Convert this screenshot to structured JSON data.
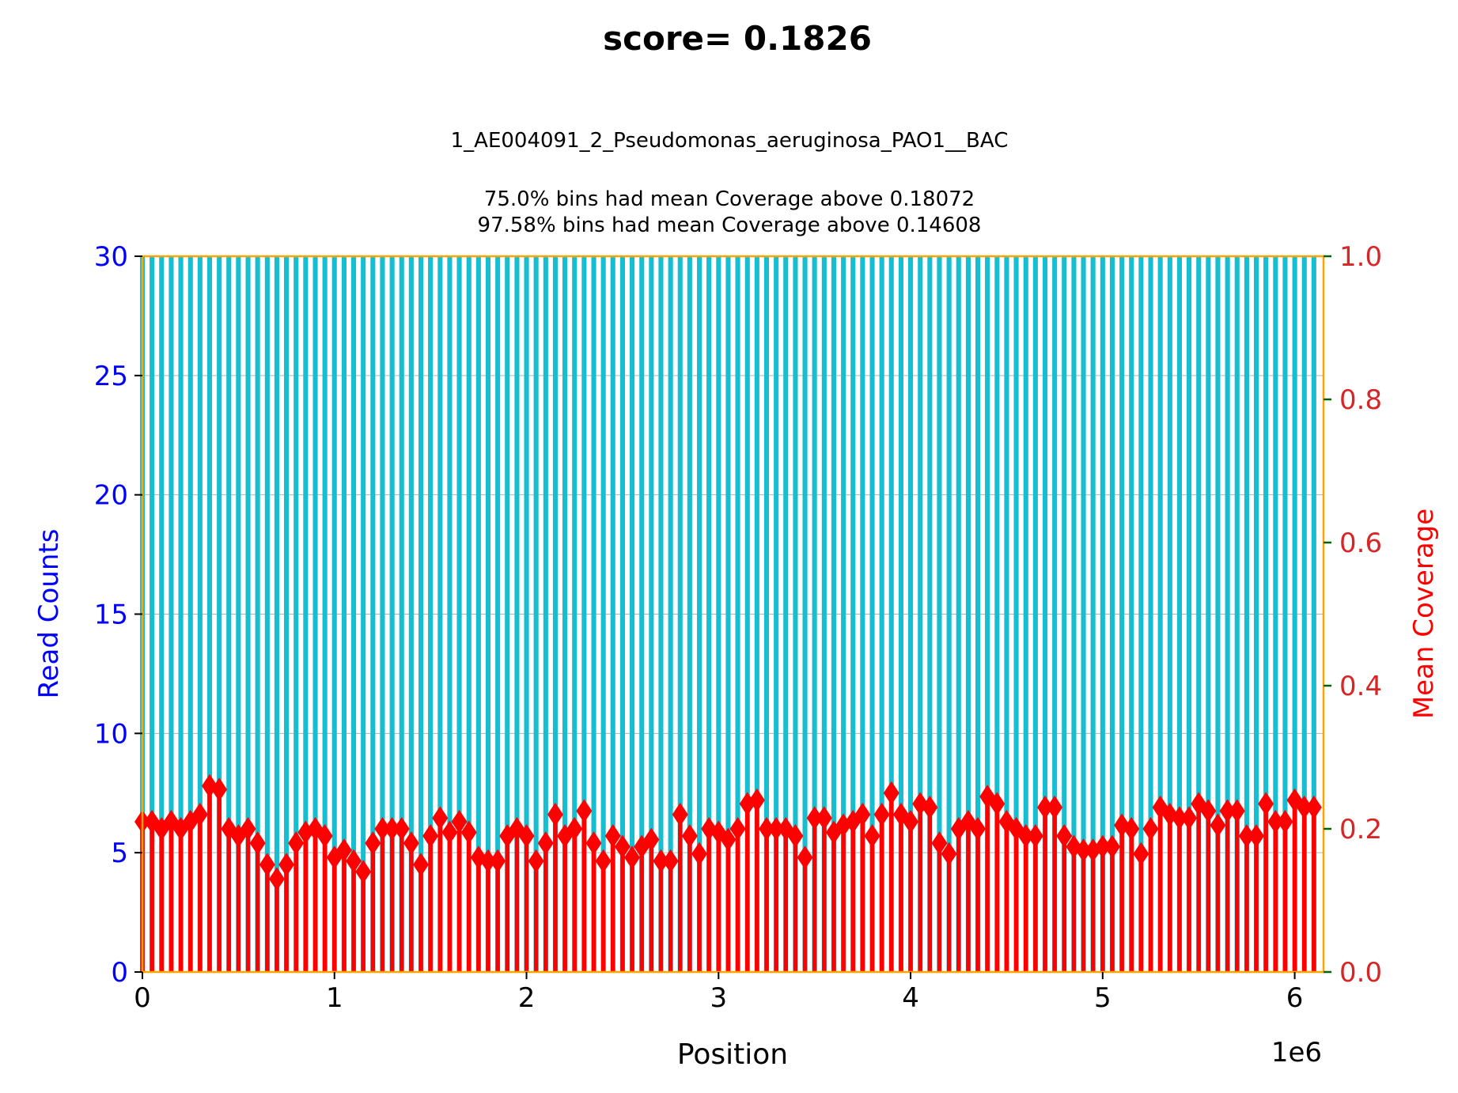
{
  "chart_data": {
    "type": "bar",
    "title": "score= 0.1826",
    "subtitle_lines": [
      "1_AE004091_2_Pseudomonas_aeruginosa_PAO1__BAC",
      "75.0% bins had mean Coverage above 0.18072",
      "97.58% bins had mean Coverage above 0.14608"
    ],
    "xlabel": "Position",
    "x_offset_label": "1e6",
    "ylabel_left": "Read Counts",
    "ylabel_right": "Mean Coverage",
    "xlim": [
      0,
      6.15
    ],
    "ylim_left": [
      0,
      30
    ],
    "ylim_right": [
      0,
      1.0
    ],
    "x_ticks": [
      0,
      1,
      2,
      3,
      4,
      5,
      6
    ],
    "x_tick_labels": [
      "0",
      "1",
      "2",
      "3",
      "4",
      "5",
      "6"
    ],
    "y_left_ticks": [
      0,
      5,
      10,
      15,
      20,
      25,
      30
    ],
    "y_left_tick_labels": [
      "0",
      "5",
      "10",
      "15",
      "20",
      "25",
      "30"
    ],
    "y_right_ticks": [
      0.0,
      0.2,
      0.4,
      0.6,
      0.8,
      1.0
    ],
    "y_right_tick_labels": [
      "0.0",
      "0.2",
      "0.4",
      "0.6",
      "0.8",
      "1.0"
    ],
    "grid": true,
    "colors": {
      "read_counts": "#17becf",
      "mean_coverage": "#ff0000",
      "frame": "#ffa500",
      "left_axis_text": "#0000ff",
      "right_axis_text": "#d62728",
      "right_ticks": "#006400"
    },
    "series": [
      {
        "name": "Read Counts",
        "axis": "left",
        "mark": "bar",
        "x_start": 0.0,
        "x_step": 0.05,
        "values": [
          30,
          30,
          30,
          30,
          30,
          30,
          30,
          30,
          30,
          30,
          30,
          30,
          30,
          30,
          30,
          30,
          30,
          30,
          30,
          30,
          30,
          30,
          30,
          30,
          30,
          30,
          30,
          30,
          30,
          30,
          30,
          30,
          30,
          30,
          30,
          30,
          30,
          30,
          30,
          30,
          30,
          30,
          30,
          30,
          30,
          30,
          30,
          30,
          30,
          30,
          30,
          30,
          30,
          30,
          30,
          30,
          30,
          30,
          30,
          30,
          30,
          30,
          30,
          30,
          30,
          30,
          30,
          30,
          30,
          30,
          30,
          30,
          30,
          30,
          30,
          30,
          30,
          30,
          30,
          30,
          30,
          30,
          30,
          30,
          30,
          30,
          30,
          30,
          30,
          30,
          30,
          30,
          30,
          30,
          30,
          30,
          30,
          30,
          30,
          30,
          30,
          30,
          30,
          30,
          30,
          30,
          30,
          30,
          30,
          30,
          30,
          30,
          30,
          30,
          30,
          30,
          30,
          30,
          30,
          30,
          30,
          30,
          30
        ]
      },
      {
        "name": "Mean Coverage",
        "axis": "right",
        "mark": "stem-diamond",
        "x_start": 0.0,
        "x_step": 0.05,
        "values": [
          0.21,
          0.21,
          0.2,
          0.21,
          0.2,
          0.21,
          0.22,
          0.26,
          0.255,
          0.2,
          0.19,
          0.2,
          0.18,
          0.15,
          0.13,
          0.15,
          0.18,
          0.195,
          0.2,
          0.19,
          0.16,
          0.17,
          0.155,
          0.14,
          0.18,
          0.2,
          0.2,
          0.2,
          0.18,
          0.15,
          0.19,
          0.215,
          0.195,
          0.21,
          0.195,
          0.16,
          0.155,
          0.155,
          0.19,
          0.2,
          0.19,
          0.155,
          0.18,
          0.22,
          0.19,
          0.2,
          0.225,
          0.18,
          0.155,
          0.19,
          0.175,
          0.16,
          0.175,
          0.185,
          0.155,
          0.155,
          0.22,
          0.19,
          0.165,
          0.2,
          0.195,
          0.185,
          0.2,
          0.235,
          0.24,
          0.2,
          0.2,
          0.2,
          0.19,
          0.16,
          0.215,
          0.215,
          0.195,
          0.205,
          0.21,
          0.22,
          0.19,
          0.22,
          0.25,
          0.22,
          0.21,
          0.235,
          0.23,
          0.18,
          0.165,
          0.2,
          0.21,
          0.2,
          0.245,
          0.235,
          0.21,
          0.2,
          0.19,
          0.19,
          0.23,
          0.23,
          0.19,
          0.175,
          0.17,
          0.17,
          0.175,
          0.175,
          0.205,
          0.2,
          0.165,
          0.2,
          0.23,
          0.22,
          0.215,
          0.215,
          0.235,
          0.225,
          0.205,
          0.225,
          0.225,
          0.19,
          0.19,
          0.235,
          0.21,
          0.21,
          0.24,
          0.23,
          0.23
        ]
      }
    ]
  }
}
